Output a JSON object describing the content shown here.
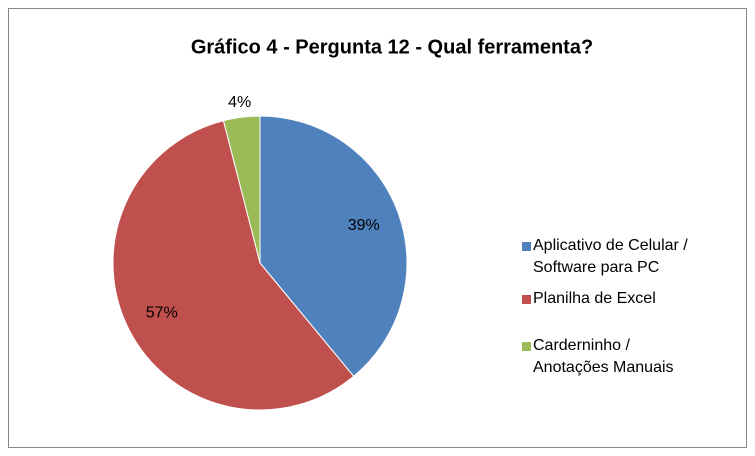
{
  "chart_data": {
    "type": "pie",
    "title": "Gráfico 4 - Pergunta 12 - Qual ferramenta?",
    "categories": [
      "Aplicativo de Celular / Software para PC",
      "Planilha de Excel",
      "Carderninho / Anotações Manuais"
    ],
    "values": [
      39,
      57,
      4
    ],
    "value_labels": [
      "39%",
      "57%",
      "4%"
    ],
    "colors": [
      "#4f81bd",
      "#c0504d",
      "#9bbb59"
    ],
    "legend": "right"
  }
}
